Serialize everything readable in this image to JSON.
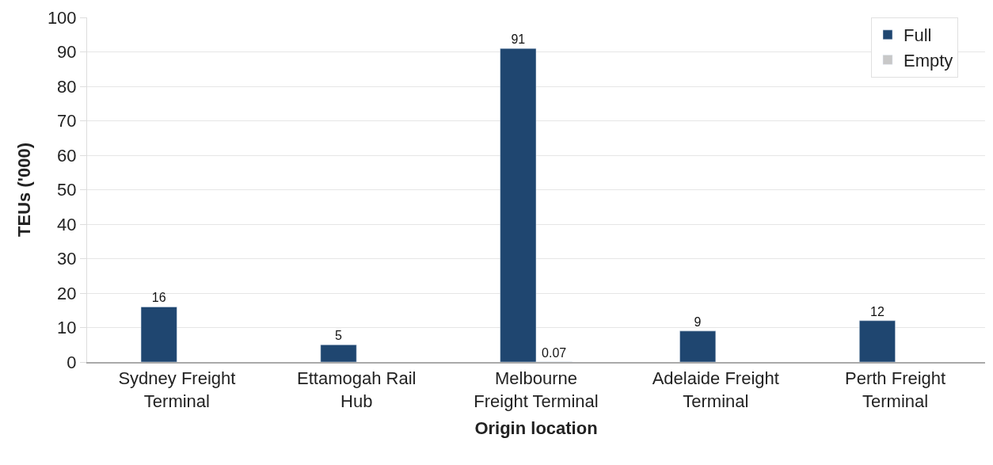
{
  "chart_data": {
    "type": "bar",
    "xlabel": "Origin location",
    "ylabel": "TEUs ('000)",
    "categories": [
      "Sydney Freight Terminal",
      "Ettamogah Rail Hub",
      "Melbourne Freight Terminal",
      "Adelaide Freight Terminal",
      "Perth Freight Terminal"
    ],
    "series": [
      {
        "name": "Full",
        "color": "#1f4670",
        "values": [
          16,
          5,
          91,
          9,
          12
        ],
        "value_labels": [
          "16",
          "5",
          "91",
          "9",
          "12"
        ]
      },
      {
        "name": "Empty",
        "color": "#c8c8c8",
        "values": [
          null,
          null,
          0.07,
          null,
          null
        ],
        "value_labels": [
          null,
          null,
          "0.07",
          null,
          null
        ]
      }
    ],
    "ylim": [
      0,
      100
    ],
    "yticks": [
      0,
      10,
      20,
      30,
      40,
      50,
      60,
      70,
      80,
      90,
      100
    ],
    "grid": "y",
    "legend": "top right"
  }
}
